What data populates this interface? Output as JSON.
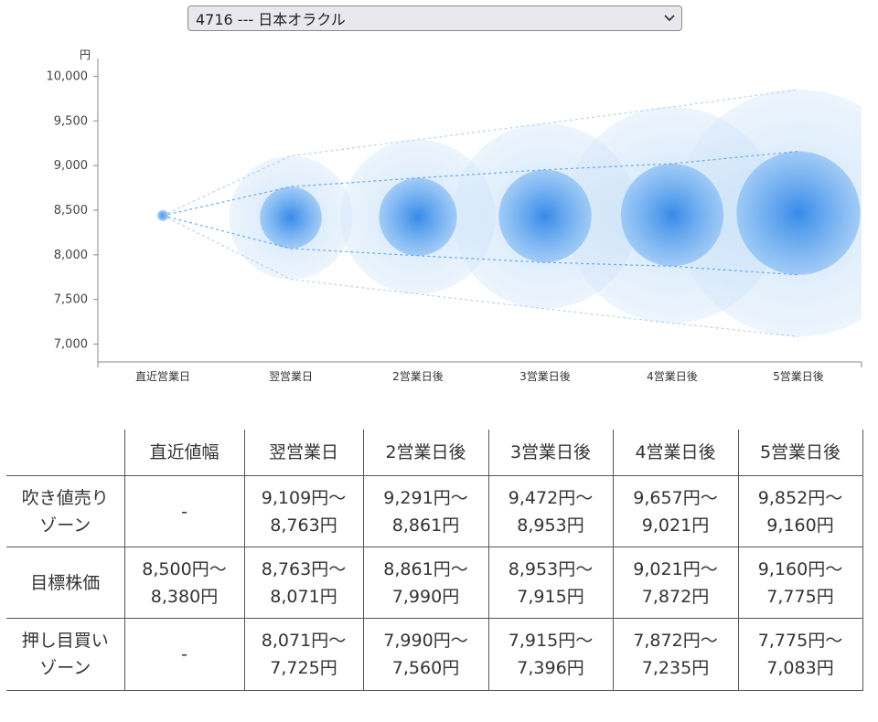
{
  "select": {
    "value": "4716 --- 日本オラクル",
    "icon": "chevron-down-icon"
  },
  "chart_data": {
    "type": "scatter",
    "title": "",
    "ylabel": "円",
    "xlabel": "",
    "ylim": [
      6800,
      10200
    ],
    "yticks": [
      "7,000",
      "7,500",
      "8,000",
      "8,500",
      "9,000",
      "9,500",
      "10,000"
    ],
    "ytick_values": [
      7000,
      7500,
      8000,
      8500,
      9000,
      9500,
      10000
    ],
    "categories": [
      "直近営業日",
      "翌営業日",
      "2営業日後",
      "3営業日後",
      "4営業日後",
      "5営業日後"
    ],
    "center": [
      8440,
      8417,
      8425,
      8434,
      8446,
      8467
    ],
    "target_high": [
      8440,
      8763,
      8861,
      8953,
      9021,
      9160
    ],
    "target_low": [
      8440,
      8071,
      7990,
      7915,
      7872,
      7775
    ],
    "outer_high": [
      8440,
      9109,
      9291,
      9472,
      9657,
      9852
    ],
    "outer_low": [
      8440,
      7725,
      7560,
      7396,
      7235,
      7083
    ],
    "colors": {
      "bubble": "#2f86e8",
      "inner_band": "#6aaaf0",
      "outer_band": "#b8d4ee",
      "axis": "#888888"
    }
  },
  "table": {
    "headers": [
      "",
      "直近値幅",
      "翌営業日",
      "2営業日後",
      "3営業日後",
      "4営業日後",
      "5営業日後"
    ],
    "rows": [
      {
        "label": [
          "吹き値売り",
          "ゾーン"
        ],
        "cells": [
          [
            "-"
          ],
          [
            "9,109円～",
            "8,763円"
          ],
          [
            "9,291円～",
            "8,861円"
          ],
          [
            "9,472円～",
            "8,953円"
          ],
          [
            "9,657円～",
            "9,021円"
          ],
          [
            "9,852円～",
            "9,160円"
          ]
        ]
      },
      {
        "label": [
          "目標株価"
        ],
        "cells": [
          [
            "8,500円～",
            "8,380円"
          ],
          [
            "8,763円～",
            "8,071円"
          ],
          [
            "8,861円～",
            "7,990円"
          ],
          [
            "8,953円～",
            "7,915円"
          ],
          [
            "9,021円～",
            "7,872円"
          ],
          [
            "9,160円～",
            "7,775円"
          ]
        ]
      },
      {
        "label": [
          "押し目買い",
          "ゾーン"
        ],
        "cells": [
          [
            "-"
          ],
          [
            "8,071円～",
            "7,725円"
          ],
          [
            "7,990円～",
            "7,560円"
          ],
          [
            "7,915円～",
            "7,396円"
          ],
          [
            "7,872円～",
            "7,235円"
          ],
          [
            "7,775円～",
            "7,083円"
          ]
        ]
      }
    ]
  }
}
